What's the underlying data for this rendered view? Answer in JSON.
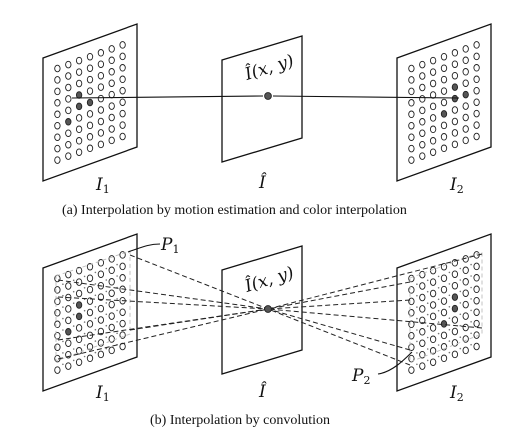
{
  "panel_a": {
    "caption": "(a) Interpolation by motion estimation and color interpolation",
    "labels": {
      "left": "I",
      "left_sub": "1",
      "center": "Î",
      "right": "I",
      "right_sub": "2",
      "center_top": "Î(x, y)"
    }
  },
  "panel_b": {
    "caption": "(b) Interpolation by convolution",
    "labels": {
      "left": "I",
      "left_sub": "1",
      "center": "Î",
      "right": "I",
      "right_sub": "2",
      "center_top": "Î(x, y)",
      "patch1": "P",
      "patch1_sub": "1",
      "patch2": "P",
      "patch2_sub": "2"
    }
  }
}
